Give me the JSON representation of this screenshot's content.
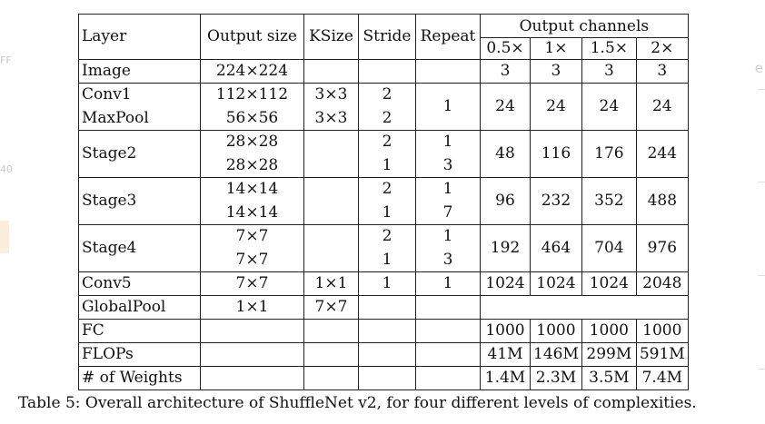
{
  "table": {
    "header": {
      "layer": "Layer",
      "output_size": "Output size",
      "ksize": "KSize",
      "stride": "Stride",
      "repeat": "Repeat",
      "output_channels": "Output channels",
      "complexities": [
        "0.5×",
        "1×",
        "1.5×",
        "2×"
      ]
    },
    "image": {
      "layer": "Image",
      "output_size": "224×224",
      "channels": [
        "3",
        "3",
        "3",
        "3"
      ]
    },
    "conv1_block": {
      "conv1": {
        "layer": "Conv1",
        "output_size": "112×112",
        "ksize": "3×3",
        "stride": "2"
      },
      "maxpool": {
        "layer": "MaxPool",
        "output_size": "56×56",
        "ksize": "3×3",
        "stride": "2"
      },
      "repeat": "1",
      "channels": [
        "24",
        "24",
        "24",
        "24"
      ]
    },
    "stages": [
      {
        "layer": "Stage2",
        "output_sizes": [
          "28×28",
          "28×28"
        ],
        "strides": [
          "2",
          "1"
        ],
        "repeats": [
          "1",
          "3"
        ],
        "channels": [
          "48",
          "116",
          "176",
          "244"
        ]
      },
      {
        "layer": "Stage3",
        "output_sizes": [
          "14×14",
          "14×14"
        ],
        "strides": [
          "2",
          "1"
        ],
        "repeats": [
          "1",
          "7"
        ],
        "channels": [
          "96",
          "232",
          "352",
          "488"
        ]
      },
      {
        "layer": "Stage4",
        "output_sizes": [
          "7×7",
          "7×7"
        ],
        "strides": [
          "2",
          "1"
        ],
        "repeats": [
          "1",
          "3"
        ],
        "channels": [
          "192",
          "464",
          "704",
          "976"
        ]
      }
    ],
    "conv5": {
      "layer": "Conv5",
      "output_size": "7×7",
      "ksize": "1×1",
      "stride": "1",
      "repeat": "1",
      "channels": [
        "1024",
        "1024",
        "1024",
        "2048"
      ]
    },
    "globalpool": {
      "layer": "GlobalPool",
      "output_size": "1×1",
      "ksize": "7×7"
    },
    "fc": {
      "layer": "FC",
      "channels": [
        "1000",
        "1000",
        "1000",
        "1000"
      ]
    },
    "flops": {
      "layer": "FLOPs",
      "values": [
        "41M",
        "146M",
        "299M",
        "591M"
      ]
    },
    "weights": {
      "layer": "# of Weights",
      "values": [
        "1.4M",
        "2.3M",
        "3.5M",
        "7.4M"
      ]
    }
  },
  "caption": "Table 5: Overall architecture of ShuffleNet v2, for four different levels of complexities.",
  "margin_glyphs": {
    "left_top": "FF",
    "left_mid": "40",
    "right_top": "e"
  }
}
